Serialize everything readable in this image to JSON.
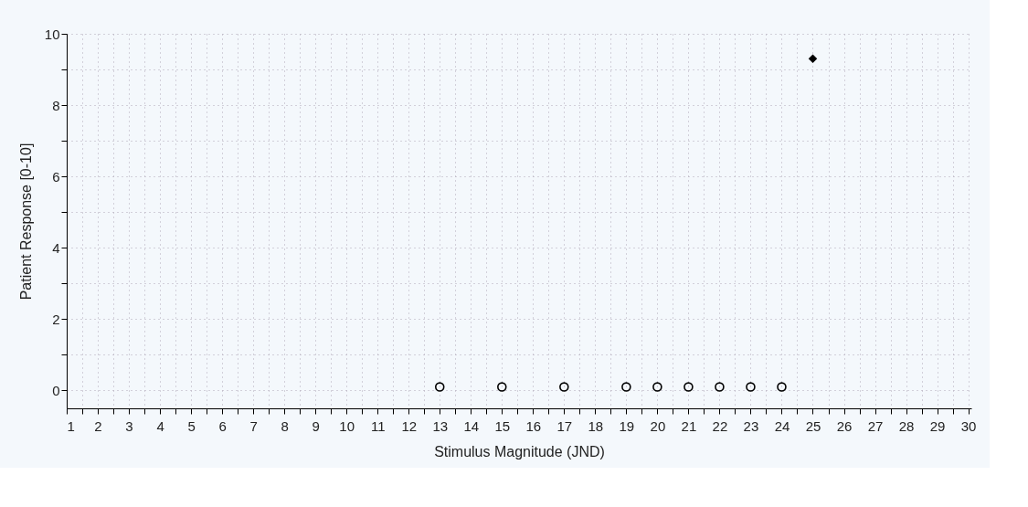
{
  "chart_data": {
    "type": "scatter",
    "xlabel": "Stimulus Magnitude (JND)",
    "ylabel": "Patient Response [0-10]",
    "xlim": [
      1,
      30.1
    ],
    "ylim": [
      -0.5,
      10
    ],
    "xticks": [
      1,
      {
        "value": 1.5,
        "label": null
      },
      2,
      {
        "value": 2.5,
        "label": null
      },
      3,
      {
        "value": 3.5,
        "label": null
      },
      4,
      {
        "value": 4.5,
        "label": null
      },
      5,
      {
        "value": 5.5,
        "label": null
      },
      6,
      {
        "value": 6.5,
        "label": null
      },
      7,
      {
        "value": 7.5,
        "label": null
      },
      8,
      {
        "value": 8.5,
        "label": null
      },
      9,
      {
        "value": 9.5,
        "label": null
      },
      10,
      {
        "value": 10.5,
        "label": null
      },
      11,
      {
        "value": 11.5,
        "label": null
      },
      12,
      {
        "value": 12.5,
        "label": null
      },
      13,
      {
        "value": 13.5,
        "label": null
      },
      14,
      {
        "value": 14.5,
        "label": null
      },
      15,
      {
        "value": 15.5,
        "label": null
      },
      16,
      {
        "value": 16.5,
        "label": null
      },
      17,
      {
        "value": 17.5,
        "label": null
      },
      18,
      {
        "value": 18.5,
        "label": null
      },
      19,
      {
        "value": 19.5,
        "label": null
      },
      20,
      {
        "value": 20.5,
        "label": null
      },
      21,
      {
        "value": 21.5,
        "label": null
      },
      22,
      {
        "value": 22.5,
        "label": null
      },
      23,
      {
        "value": 23.5,
        "label": null
      },
      24,
      {
        "value": 24.5,
        "label": null
      },
      25,
      {
        "value": 25.5,
        "label": null
      },
      26,
      {
        "value": 26.5,
        "label": null
      },
      27,
      {
        "value": 27.5,
        "label": null
      },
      28,
      {
        "value": 28.5,
        "label": null
      },
      29,
      {
        "value": 29.5,
        "label": null
      },
      30
    ],
    "yticks": [
      0,
      {
        "value": 1,
        "label": null
      },
      2,
      {
        "value": 3,
        "label": null
      },
      4,
      {
        "value": 5,
        "label": null
      },
      6,
      {
        "value": 7,
        "label": null
      },
      8,
      {
        "value": 9,
        "label": null
      },
      10
    ],
    "grid": true,
    "series": [
      {
        "color": "#000000",
        "marker": "circle",
        "x": [
          13,
          15,
          17,
          19,
          20,
          21,
          22,
          23,
          24
        ],
        "values": [
          0.1,
          0.1,
          0.1,
          0.1,
          0.1,
          0.1,
          0.1,
          0.1,
          0.1
        ]
      },
      {
        "color": "#000000",
        "marker": "diamond",
        "x": [
          25
        ],
        "values": [
          9.3
        ]
      }
    ]
  }
}
